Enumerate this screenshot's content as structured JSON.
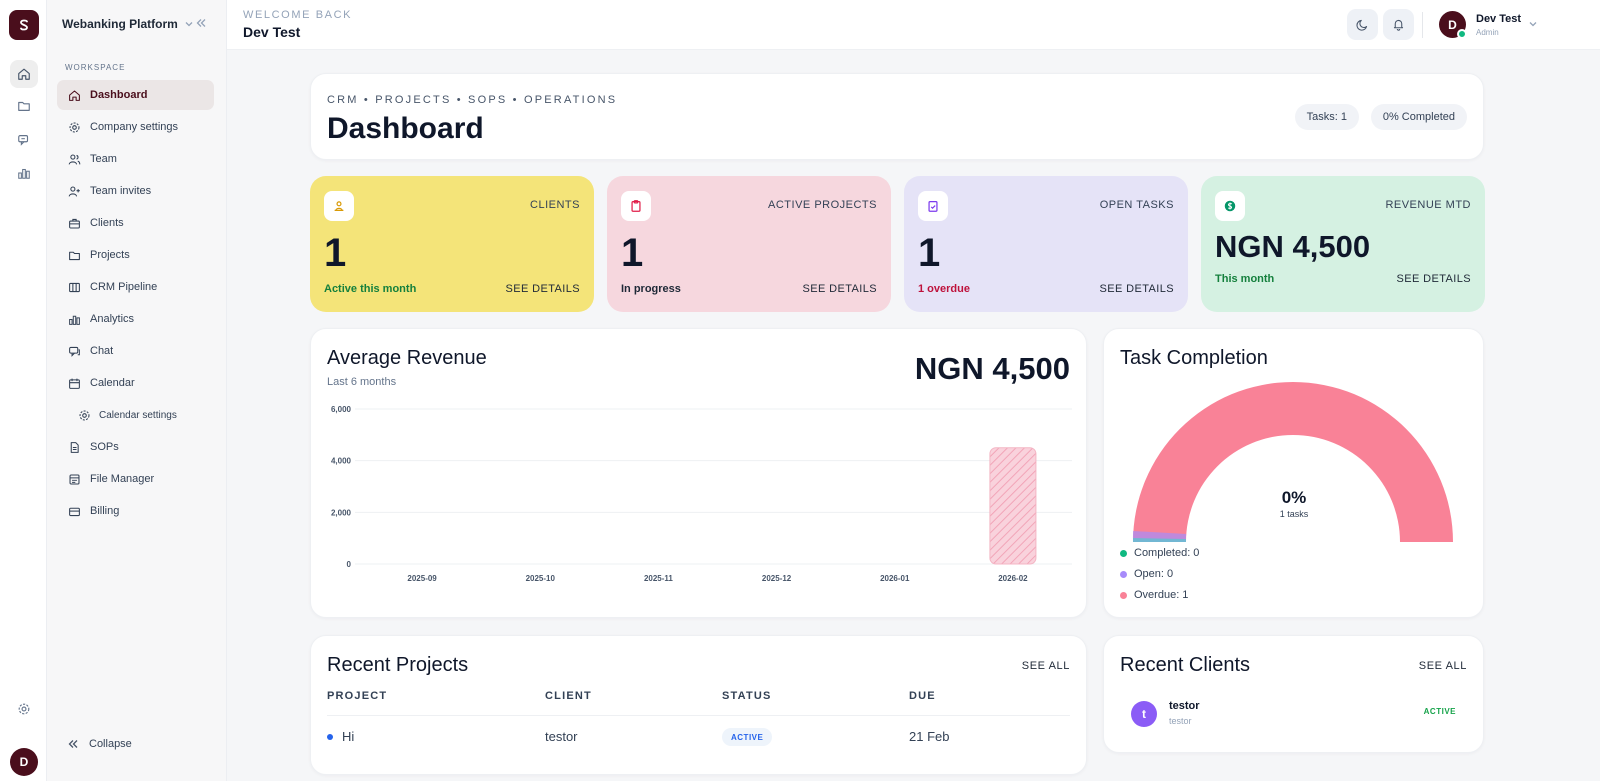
{
  "app": {
    "name": "Webanking Platform",
    "collapse_label": "Collapse",
    "workspace_label": "WORKSPACE",
    "avatar_initial": "D"
  },
  "sidebar": {
    "items": [
      {
        "label": "Dashboard",
        "icon": "home-icon",
        "active": true
      },
      {
        "label": "Company settings",
        "icon": "gear-icon"
      },
      {
        "label": "Team",
        "icon": "users-icon"
      },
      {
        "label": "Team invites",
        "icon": "user-plus-icon"
      },
      {
        "label": "Clients",
        "icon": "briefcase-icon"
      },
      {
        "label": "Projects",
        "icon": "folder-icon"
      },
      {
        "label": "CRM Pipeline",
        "icon": "columns-icon"
      },
      {
        "label": "Analytics",
        "icon": "bar-chart-icon"
      },
      {
        "label": "Chat",
        "icon": "chat-icon"
      },
      {
        "label": "Calendar",
        "icon": "calendar-icon"
      },
      {
        "label": "Calendar settings",
        "icon": "gear-icon",
        "sub": true
      },
      {
        "label": "SOPs",
        "icon": "document-icon"
      },
      {
        "label": "File Manager",
        "icon": "file-manager-icon"
      },
      {
        "label": "Billing",
        "icon": "credit-card-icon"
      }
    ]
  },
  "topbar": {
    "eyebrow": "WELCOME BACK",
    "user_name": "Dev Test",
    "user_role": "Admin",
    "avatar_initial": "D"
  },
  "header": {
    "breadcrumb": "CRM • PROJECTS • SOPS • OPERATIONS",
    "title": "Dashboard",
    "tasks_pill": "Tasks: 1",
    "completed_pill": "0% Completed"
  },
  "stats": [
    {
      "label": "CLIENTS",
      "value": "1",
      "sub": "Active this month",
      "details": "SEE DETAILS",
      "bg": "#f4e479",
      "sub_color": "#15803d",
      "icon_color": "#d99a06"
    },
    {
      "label": "ACTIVE PROJECTS",
      "value": "1",
      "sub": "In progress",
      "details": "SEE DETAILS",
      "bg": "#f6d7de",
      "sub_color": "#1f2937",
      "icon_color": "#e11d48"
    },
    {
      "label": "OPEN TASKS",
      "value": "1",
      "sub": "1 overdue",
      "details": "SEE DETAILS",
      "bg": "#e5e3f7",
      "sub_color": "#be123c",
      "icon_color": "#7c3aed"
    },
    {
      "label": "REVENUE MTD",
      "value": "NGN 4,500",
      "sub": "This month",
      "details": "SEE DETAILS",
      "bg": "#d5f1e2",
      "sub_color": "#15803d",
      "icon_color": "#059669"
    }
  ],
  "revenue": {
    "title": "Average Revenue",
    "subtitle": "Last 6 months",
    "total": "NGN 4,500"
  },
  "chart_data": {
    "type": "bar",
    "title": "Average Revenue",
    "subtitle": "Last 6 months",
    "categories": [
      "2025-09",
      "2025-10",
      "2025-11",
      "2025-12",
      "2026-01",
      "2026-02"
    ],
    "values": [
      0,
      0,
      0,
      0,
      0,
      4500
    ],
    "ylim": [
      0,
      6000
    ],
    "yticks": [
      0,
      2000,
      4000,
      6000
    ],
    "ytick_labels": [
      "0",
      "2,000",
      "4,000",
      "6,000"
    ],
    "xlabel": "",
    "ylabel": "",
    "grid": true
  },
  "tasks_chart": {
    "title": "Task Completion",
    "center_value": "0%",
    "center_sub": "1 tasks",
    "segments": [
      {
        "label": "Completed: 0",
        "value": 0,
        "color": "#10b981"
      },
      {
        "label": "Open: 0",
        "value": 0,
        "color": "#a78bfa"
      },
      {
        "label": "Overdue: 1",
        "value": 1,
        "color": "#f98297"
      }
    ]
  },
  "projects": {
    "title": "Recent Projects",
    "see_all": "SEE ALL",
    "columns": [
      "PROJECT",
      "CLIENT",
      "STATUS",
      "DUE"
    ],
    "rows": [
      {
        "name": "Hi",
        "client": "testor",
        "status": "ACTIVE",
        "due": "21 Feb"
      }
    ]
  },
  "clients": {
    "title": "Recent Clients",
    "see_all": "SEE ALL",
    "rows": [
      {
        "initial": "t",
        "name": "testor",
        "subtitle": "testor",
        "status": "ACTIVE"
      }
    ]
  }
}
